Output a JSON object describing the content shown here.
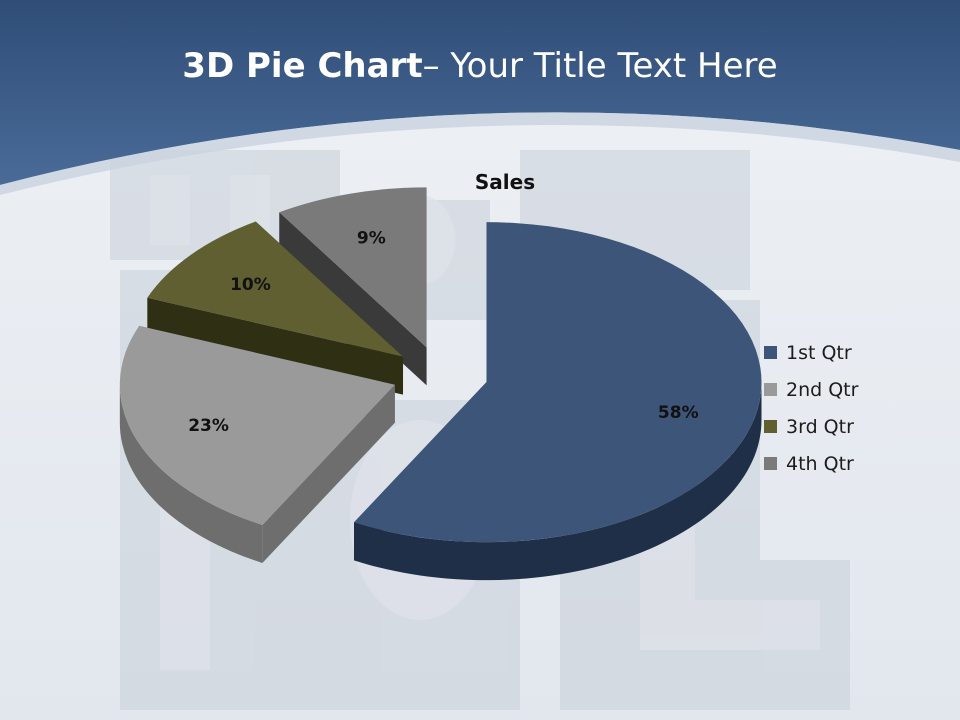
{
  "title": {
    "bold": "3D Pie Chart",
    "rest": "– Your Title Text Here"
  },
  "chart_data": {
    "type": "pie",
    "title": "Sales",
    "style": "3d-exploded",
    "categories": [
      "1st Qtr",
      "2nd Qtr",
      "3rd Qtr",
      "4th Qtr"
    ],
    "values": [
      58,
      23,
      10,
      9
    ],
    "data_labels": [
      "58%",
      "23%",
      "10%",
      "9%"
    ],
    "colors": [
      "#3d5578",
      "#9a9a9a",
      "#5f5f32",
      "#7a7a7a"
    ],
    "legend_position": "right"
  },
  "colors": {
    "header": "#3e5f8c",
    "background": "#e9edf2"
  }
}
